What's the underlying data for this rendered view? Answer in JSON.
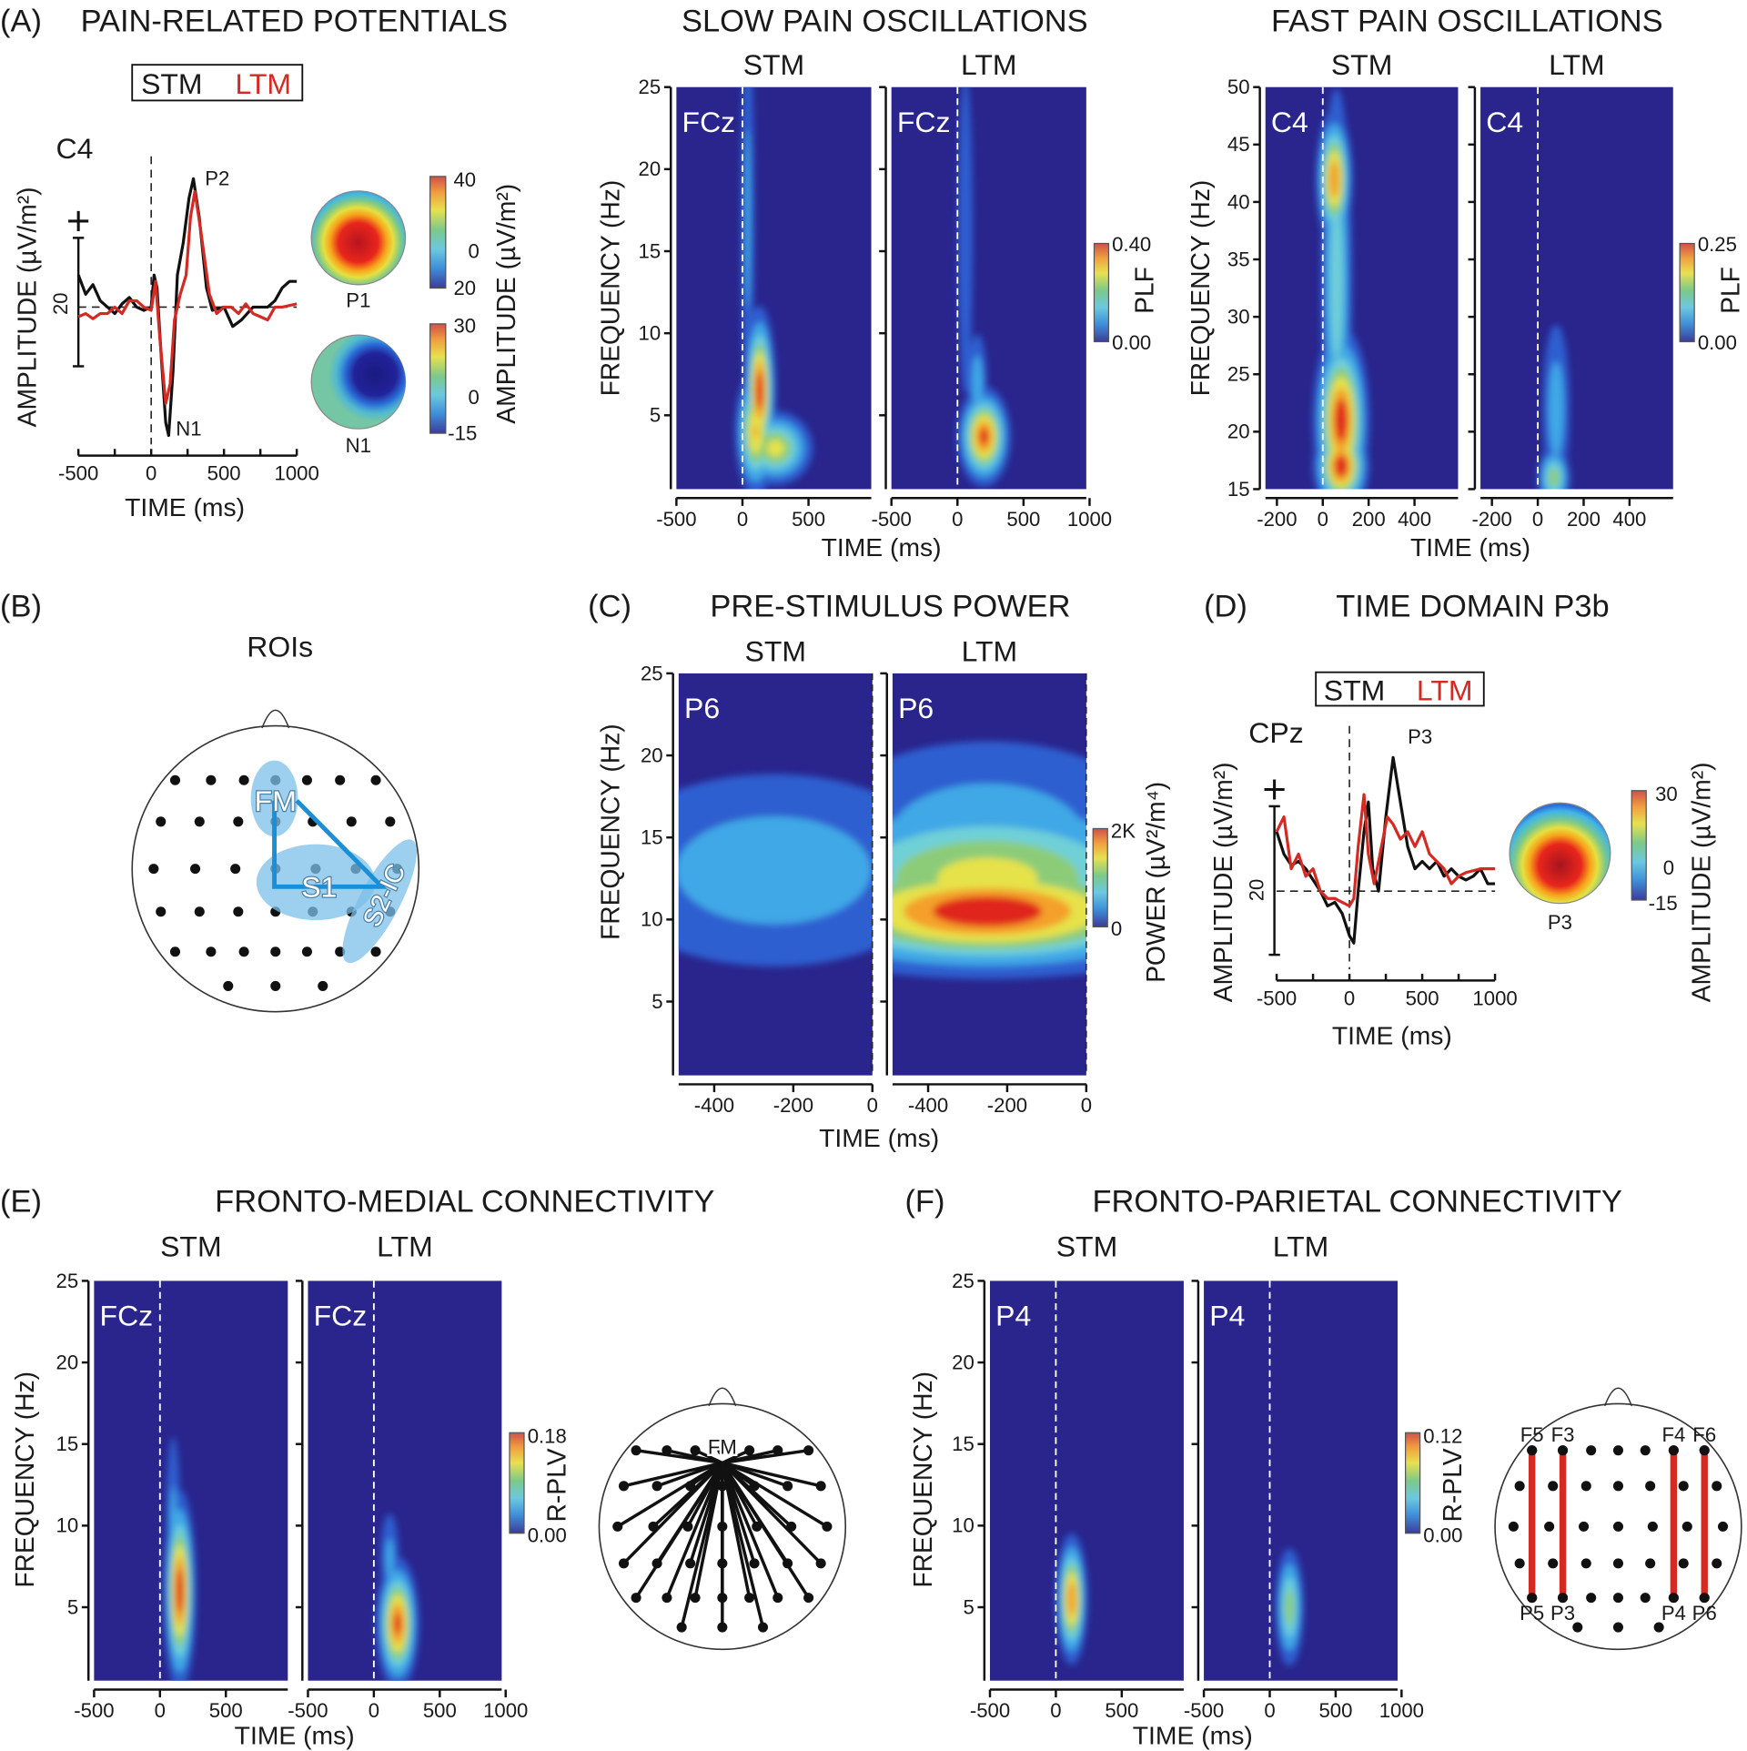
{
  "panels": {
    "A": {
      "letter": "(A)",
      "title": "PAIN-RELATED POTENTIALS"
    },
    "slow": {
      "title": "SLOW PAIN OSCILLATIONS",
      "xlabel": "TIME (ms)",
      "ylabel": "FREQUENCY (Hz)",
      "colorbar": {
        "max": "0.40",
        "min": "0.00",
        "label": "PLF"
      }
    },
    "fast": {
      "title": "FAST PAIN OSCILLATIONS",
      "xlabel": "TIME (ms)",
      "ylabel": "FREQUENCY (Hz)",
      "colorbar": {
        "max": "0.25",
        "min": "0.00",
        "label": "PLF"
      }
    },
    "B": {
      "letter": "(B)",
      "title": "ROIs",
      "rois": [
        "FM",
        "S1",
        "S2-IC"
      ],
      "roi_color": "#1a8fd8"
    },
    "C": {
      "letter": "(C)",
      "title": "PRE-STIMULUS POWER",
      "xlabel": "TIME (ms)",
      "ylabel": "FREQUENCY (Hz)",
      "colorbar": {
        "max": "2K",
        "min": "0",
        "label": "POWER (µV²/m⁴)"
      }
    },
    "D": {
      "letter": "(D)",
      "title": "TIME DOMAIN P3b"
    },
    "E": {
      "letter": "(E)",
      "title": "FRONTO-MEDIAL CONNECTIVITY",
      "xlabel": "TIME (ms)",
      "ylabel": "FREQUENCY (Hz)",
      "colorbar": {
        "max": "0.18",
        "min": "0.00",
        "label": "R-PLV"
      },
      "seed": "FM"
    },
    "F": {
      "letter": "(F)",
      "title": "FRONTO-PARIETAL CONNECTIVITY",
      "xlabel": "TIME (ms)",
      "ylabel": "FREQUENCY (Hz)",
      "colorbar": {
        "max": "0.12",
        "min": "0.00",
        "label": "R-PLV"
      },
      "pairs": [
        [
          "F5",
          "P5"
        ],
        [
          "F3",
          "P3"
        ],
        [
          "F4",
          "P4"
        ],
        [
          "F6",
          "P6"
        ]
      ],
      "pair_color": "#d42a24"
    }
  },
  "colors": {
    "STM": "#111111",
    "LTM": "#d42a24",
    "heatmap_background": "#29258d"
  },
  "chart_data": [
    {
      "type": "line",
      "panel": "A",
      "channel": "C4",
      "legend": [
        "STM",
        "LTM"
      ],
      "xlabel": "TIME (ms)",
      "ylabel": "AMPLITUDE (µV/m²)",
      "xlim": [
        -500,
        1000
      ],
      "xticks": [
        "-500",
        "0",
        "500",
        "1000"
      ],
      "scale_bar": "20",
      "annotations": [
        "P2",
        "N1"
      ],
      "topomaps": [
        {
          "label": "P1",
          "colorbar": [
            "40",
            "0",
            "20"
          ]
        },
        {
          "label": "N1",
          "colorbar": [
            "30",
            "0",
            "-15"
          ]
        }
      ],
      "colorbar_label": "AMPLITUDE (µV/m²)",
      "series": [
        {
          "name": "STM",
          "x": [
            -500,
            -450,
            -400,
            -350,
            -300,
            -250,
            -200,
            -150,
            -100,
            -50,
            0,
            20,
            40,
            70,
            100,
            120,
            150,
            180,
            220,
            260,
            290,
            330,
            380,
            420,
            500,
            560,
            620,
            700,
            800,
            850,
            900,
            950,
            1000
          ],
          "y": [
            5,
            2,
            3.5,
            1,
            0,
            -1,
            0.5,
            1.5,
            0,
            -0.5,
            0,
            5,
            3,
            -8,
            -18,
            -20,
            -10,
            5,
            10,
            17,
            20,
            14,
            3,
            -0.5,
            0,
            -3,
            -2,
            0,
            0,
            1,
            3,
            4,
            4
          ]
        },
        {
          "name": "LTM",
          "x": [
            -500,
            -450,
            -400,
            -350,
            -300,
            -250,
            -200,
            -150,
            -100,
            -50,
            0,
            30,
            60,
            100,
            130,
            160,
            200,
            240,
            270,
            300,
            340,
            400,
            450,
            500,
            550,
            600,
            650,
            700,
            750,
            800,
            850,
            900,
            1000
          ],
          "y": [
            -1.5,
            -1,
            -1.8,
            -1,
            -1,
            0,
            -1,
            1,
            1,
            0,
            -0.5,
            4,
            -5,
            -15,
            -12,
            -2,
            2,
            5,
            14,
            18,
            12,
            2,
            -1,
            0,
            0,
            -1,
            0.5,
            -1,
            -1.5,
            -2,
            0,
            0,
            0.5
          ]
        }
      ]
    },
    {
      "type": "heatmap",
      "panel": "slow",
      "condition": "STM",
      "channel": "FCz",
      "xlim": [
        -500,
        975
      ],
      "ylim": [
        0.5,
        25
      ],
      "xticks": [
        "-500",
        "0",
        "500"
      ],
      "yticks": [
        "5",
        "10",
        "15",
        "20",
        "25"
      ],
      "peaks": [
        {
          "time_ms": 40,
          "freq_hz": 17,
          "spread_ms": 35,
          "spread_hz": 9,
          "level": 0.3
        },
        {
          "time_ms": 130,
          "freq_hz": 6.5,
          "spread_ms": 60,
          "spread_hz": 2.5,
          "level": 1.0
        },
        {
          "time_ms": 250,
          "freq_hz": 3,
          "spread_ms": 150,
          "spread_hz": 1.2,
          "level": 0.7
        },
        {
          "time_ms": 100,
          "freq_hz": 4,
          "spread_ms": 80,
          "spread_hz": 2,
          "level": 0.8
        }
      ]
    },
    {
      "type": "heatmap",
      "panel": "slow",
      "condition": "LTM",
      "channel": "FCz",
      "xlim": [
        -500,
        975
      ],
      "ylim": [
        0.5,
        25
      ],
      "xticks": [
        "-500",
        "0",
        "500",
        "1000"
      ],
      "yticks": [],
      "peaks": [
        {
          "time_ms": 60,
          "freq_hz": 16,
          "spread_ms": 45,
          "spread_hz": 8,
          "level": 0.25
        },
        {
          "time_ms": 150,
          "freq_hz": 7,
          "spread_ms": 50,
          "spread_hz": 2,
          "level": 0.35
        },
        {
          "time_ms": 200,
          "freq_hz": 3.7,
          "spread_ms": 100,
          "spread_hz": 1.5,
          "level": 0.95
        }
      ]
    },
    {
      "type": "heatmap",
      "panel": "fast",
      "condition": "STM",
      "channel": "C4",
      "xlim": [
        -250,
        590
      ],
      "ylim": [
        15,
        50
      ],
      "xticks": [
        "-200",
        "0",
        "200",
        "400"
      ],
      "yticks": [
        "15",
        "20",
        "25",
        "30",
        "35",
        "40",
        "45",
        "50"
      ],
      "peaks": [
        {
          "time_ms": 50,
          "freq_hz": 42,
          "spread_ms": 40,
          "spread_hz": 3,
          "level": 0.9
        },
        {
          "time_ms": 60,
          "freq_hz": 33,
          "spread_ms": 40,
          "spread_hz": 10,
          "level": 0.5
        },
        {
          "time_ms": 80,
          "freq_hz": 21,
          "spread_ms": 60,
          "spread_hz": 4,
          "level": 1.0
        },
        {
          "time_ms": 80,
          "freq_hz": 17,
          "spread_ms": 60,
          "spread_hz": 2,
          "level": 1.0
        }
      ]
    },
    {
      "type": "heatmap",
      "panel": "fast",
      "condition": "LTM",
      "channel": "C4",
      "xlim": [
        -250,
        590
      ],
      "ylim": [
        15,
        50
      ],
      "xticks": [
        "-200",
        "0",
        "200",
        "400"
      ],
      "yticks": [],
      "peaks": [
        {
          "time_ms": 80,
          "freq_hz": 22,
          "spread_ms": 40,
          "spread_hz": 5,
          "level": 0.35
        },
        {
          "time_ms": 70,
          "freq_hz": 16,
          "spread_ms": 40,
          "spread_hz": 1.5,
          "level": 0.6
        }
      ]
    },
    {
      "type": "heatmap",
      "panel": "C",
      "condition": "STM",
      "channel": "P6",
      "xlim": [
        -490,
        0
      ],
      "ylim": [
        0.5,
        25
      ],
      "xticks": [
        "-400",
        "-200",
        "0"
      ],
      "yticks": [
        "5",
        "10",
        "15",
        "20",
        "25"
      ],
      "peaks": [
        {
          "time_ms": -250,
          "freq_hz": 13,
          "spread_ms": 300,
          "spread_hz": 4,
          "level": 0.35
        }
      ]
    },
    {
      "type": "heatmap",
      "panel": "C",
      "condition": "LTM",
      "channel": "P6",
      "xlim": [
        -490,
        0
      ],
      "ylim": [
        0.5,
        25
      ],
      "xticks": [
        "-400",
        "-200",
        "0"
      ],
      "yticks": [],
      "peaks": [
        {
          "time_ms": -250,
          "freq_hz": 15,
          "spread_ms": 300,
          "spread_hz": 4,
          "level": 0.35
        },
        {
          "time_ms": -250,
          "freq_hz": 12.5,
          "spread_ms": 300,
          "spread_hz": 3,
          "level": 0.7
        },
        {
          "time_ms": -250,
          "freq_hz": 10.5,
          "spread_ms": 300,
          "spread_hz": 2,
          "level": 1.0
        }
      ]
    },
    {
      "type": "line",
      "panel": "D",
      "channel": "CPz",
      "legend": [
        "STM",
        "LTM"
      ],
      "xlabel": "TIME (ms)",
      "ylabel": "AMPLITUDE (µV/m²)",
      "xlim": [
        -500,
        1000
      ],
      "xticks": [
        "-500",
        "0",
        "500",
        "1000"
      ],
      "scale_bar": "20",
      "annotations": [
        "P3"
      ],
      "topomaps": [
        {
          "label": "P3",
          "colorbar": [
            "30",
            "0",
            "-15"
          ]
        }
      ],
      "colorbar_label": "AMPLITUDE (µV/m²)",
      "series": [
        {
          "name": "STM",
          "x": [
            -500,
            -450,
            -400,
            -350,
            -300,
            -250,
            -200,
            -150,
            -100,
            -50,
            0,
            30,
            60,
            100,
            130,
            160,
            200,
            250,
            300,
            350,
            400,
            450,
            500,
            550,
            600,
            650,
            700,
            750,
            800,
            850,
            900,
            950,
            1000
          ],
          "y": [
            8,
            5,
            3.5,
            4,
            3,
            1.5,
            0,
            -2,
            -1.5,
            -3,
            -6,
            -7,
            0,
            8,
            12,
            3,
            0,
            10,
            18,
            12,
            6,
            3,
            4,
            3,
            4,
            2,
            3,
            2,
            1.5,
            2,
            3,
            1,
            1
          ]
        },
        {
          "name": "LTM",
          "x": [
            -500,
            -450,
            -400,
            -350,
            -300,
            -250,
            -200,
            -150,
            -100,
            -50,
            0,
            30,
            60,
            100,
            130,
            170,
            220,
            260,
            300,
            350,
            400,
            450,
            500,
            550,
            600,
            650,
            700,
            750,
            800,
            900,
            1000
          ],
          "y": [
            8,
            10,
            3,
            5,
            2,
            3,
            0,
            -1,
            -1,
            -1.5,
            -2,
            -1,
            6,
            13,
            5,
            1,
            6,
            10,
            9,
            7,
            8,
            6,
            8,
            5,
            4,
            3,
            1,
            2,
            2.5,
            3,
            3
          ]
        }
      ]
    },
    {
      "type": "heatmap",
      "panel": "E",
      "condition": "STM",
      "channel": "FCz",
      "xlim": [
        -500,
        970
      ],
      "ylim": [
        0.5,
        25
      ],
      "xticks": [
        "-500",
        "0",
        "500"
      ],
      "yticks": [
        "5",
        "10",
        "15",
        "20",
        "25"
      ],
      "peaks": [
        {
          "time_ms": 100,
          "freq_hz": 10,
          "spread_ms": 40,
          "spread_hz": 4,
          "level": 0.3
        },
        {
          "time_ms": 150,
          "freq_hz": 6,
          "spread_ms": 60,
          "spread_hz": 3,
          "level": 1.0
        }
      ]
    },
    {
      "type": "heatmap",
      "panel": "E",
      "condition": "LTM",
      "channel": "FCz",
      "xlim": [
        -500,
        970
      ],
      "ylim": [
        0.5,
        25
      ],
      "xticks": [
        "-500",
        "0",
        "500",
        "1000"
      ],
      "yticks": [],
      "peaks": [
        {
          "time_ms": 120,
          "freq_hz": 8,
          "spread_ms": 50,
          "spread_hz": 2,
          "level": 0.3
        },
        {
          "time_ms": 180,
          "freq_hz": 4,
          "spread_ms": 80,
          "spread_hz": 2,
          "level": 0.95
        }
      ]
    },
    {
      "type": "heatmap",
      "panel": "F",
      "condition": "STM",
      "channel": "P4",
      "xlim": [
        -500,
        970
      ],
      "ylim": [
        0.5,
        25
      ],
      "xticks": [
        "-500",
        "0",
        "500"
      ],
      "yticks": [
        "5",
        "10",
        "15",
        "20",
        "25"
      ],
      "peaks": [
        {
          "time_ms": 120,
          "freq_hz": 5.5,
          "spread_ms": 60,
          "spread_hz": 2,
          "level": 0.9
        }
      ]
    },
    {
      "type": "heatmap",
      "panel": "F",
      "condition": "LTM",
      "channel": "P4",
      "xlim": [
        -500,
        970
      ],
      "ylim": [
        0.5,
        25
      ],
      "xticks": [
        "-500",
        "0",
        "500",
        "1000"
      ],
      "yticks": [],
      "peaks": [
        {
          "time_ms": 150,
          "freq_hz": 5,
          "spread_ms": 60,
          "spread_hz": 2,
          "level": 0.6
        }
      ]
    }
  ]
}
